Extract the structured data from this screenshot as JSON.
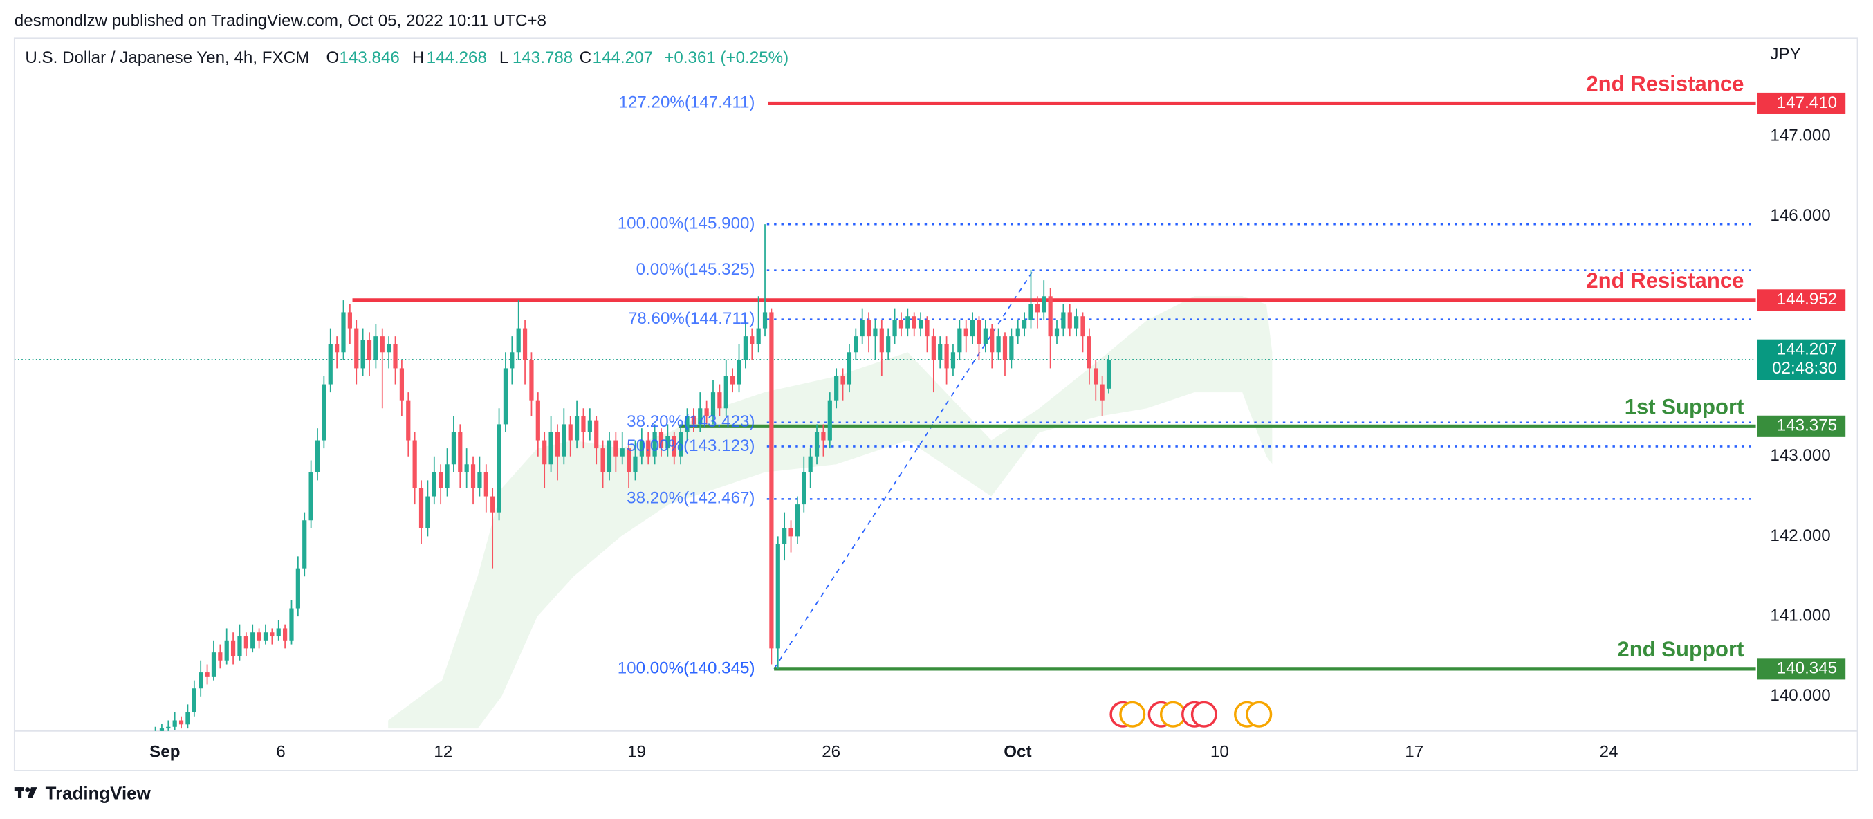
{
  "header": "desmondlzw published on TradingView.com, Oct 05, 2022 10:11 UTC+8",
  "footer": "TradingView",
  "chart_data": {
    "type": "candlestick",
    "title": "U.S. Dollar / Japanese Yen, 4h, FXCM",
    "ohlc_legend": [
      {
        "key": "O",
        "value": "143.846"
      },
      {
        "key": "H",
        "value": "144.268"
      },
      {
        "key": "L",
        "value": "143.788"
      },
      {
        "key": "C",
        "value": "144.207"
      }
    ],
    "change": "+0.361 (+0.25%)",
    "currency": "JPY",
    "colors": {
      "up": "#22ab94",
      "down": "#f7525f"
    },
    "candles": [
      [
        139.5,
        139.62,
        139.45,
        139.55
      ],
      [
        139.55,
        139.66,
        139.5,
        139.6
      ],
      [
        139.6,
        139.7,
        139.55,
        139.62
      ],
      [
        139.62,
        139.8,
        139.58,
        139.7
      ],
      [
        139.7,
        139.75,
        139.6,
        139.65
      ],
      [
        139.65,
        139.9,
        139.6,
        139.8
      ],
      [
        139.8,
        140.2,
        139.75,
        140.1
      ],
      [
        140.1,
        140.45,
        140.0,
        140.3
      ],
      [
        140.3,
        140.4,
        140.15,
        140.25
      ],
      [
        140.25,
        140.7,
        140.2,
        140.55
      ],
      [
        140.55,
        140.65,
        140.35,
        140.45
      ],
      [
        140.45,
        140.85,
        140.4,
        140.7
      ],
      [
        140.7,
        140.8,
        140.4,
        140.5
      ],
      [
        140.5,
        140.9,
        140.45,
        140.75
      ],
      [
        140.75,
        140.8,
        140.5,
        140.6
      ],
      [
        140.6,
        140.9,
        140.55,
        140.8
      ],
      [
        140.8,
        140.85,
        140.6,
        140.7
      ],
      [
        140.7,
        140.9,
        140.65,
        140.8
      ],
      [
        140.8,
        140.85,
        140.65,
        140.75
      ],
      [
        140.75,
        140.95,
        140.7,
        140.85
      ],
      [
        140.85,
        140.9,
        140.6,
        140.7
      ],
      [
        140.7,
        141.2,
        140.65,
        141.1
      ],
      [
        141.1,
        141.75,
        141.0,
        141.6
      ],
      [
        141.6,
        142.3,
        141.5,
        142.2
      ],
      [
        142.2,
        142.95,
        142.1,
        142.8
      ],
      [
        142.8,
        143.35,
        142.7,
        143.2
      ],
      [
        143.2,
        144.0,
        143.1,
        143.9
      ],
      [
        143.9,
        144.6,
        143.8,
        144.4
      ],
      [
        144.4,
        144.5,
        144.1,
        144.3
      ],
      [
        144.3,
        144.95,
        144.2,
        144.8
      ],
      [
        144.8,
        144.9,
        144.4,
        144.6
      ],
      [
        144.6,
        144.7,
        143.9,
        144.1
      ],
      [
        144.1,
        144.6,
        144.0,
        144.45
      ],
      [
        144.45,
        144.55,
        144.0,
        144.2
      ],
      [
        144.2,
        144.65,
        144.1,
        144.5
      ],
      [
        144.5,
        144.6,
        143.6,
        144.3
      ],
      [
        144.3,
        144.5,
        144.1,
        144.4
      ],
      [
        144.4,
        144.5,
        143.9,
        144.1
      ],
      [
        144.1,
        144.2,
        143.5,
        143.7
      ],
      [
        143.7,
        143.8,
        143.0,
        143.2
      ],
      [
        143.2,
        143.3,
        142.4,
        142.6
      ],
      [
        142.6,
        142.7,
        141.9,
        142.1
      ],
      [
        142.1,
        142.7,
        142.0,
        142.5
      ],
      [
        142.5,
        143.0,
        142.4,
        142.8
      ],
      [
        142.8,
        142.9,
        142.4,
        142.6
      ],
      [
        142.6,
        143.1,
        142.5,
        142.9
      ],
      [
        142.9,
        143.5,
        142.8,
        143.3
      ],
      [
        143.3,
        143.4,
        142.6,
        142.8
      ],
      [
        142.8,
        143.1,
        142.6,
        142.9
      ],
      [
        142.9,
        143.0,
        142.4,
        142.6
      ],
      [
        142.6,
        143.0,
        142.5,
        142.8
      ],
      [
        142.8,
        142.9,
        142.3,
        142.5
      ],
      [
        142.5,
        142.6,
        141.6,
        142.3
      ],
      [
        142.3,
        143.6,
        142.2,
        143.4
      ],
      [
        143.4,
        144.3,
        143.3,
        144.1
      ],
      [
        144.1,
        144.5,
        143.9,
        144.3
      ],
      [
        144.3,
        144.95,
        144.2,
        144.6
      ],
      [
        144.6,
        144.7,
        143.9,
        144.2
      ],
      [
        144.2,
        144.3,
        143.5,
        143.7
      ],
      [
        143.7,
        143.8,
        143.0,
        143.2
      ],
      [
        143.2,
        143.3,
        142.6,
        142.9
      ],
      [
        142.9,
        143.5,
        142.8,
        143.3
      ],
      [
        143.3,
        143.4,
        142.7,
        143.0
      ],
      [
        143.0,
        143.6,
        142.9,
        143.4
      ],
      [
        143.4,
        143.5,
        143.0,
        143.2
      ],
      [
        143.2,
        143.7,
        143.1,
        143.5
      ],
      [
        143.5,
        143.6,
        143.1,
        143.3
      ],
      [
        143.3,
        143.6,
        143.2,
        143.45
      ],
      [
        143.45,
        143.5,
        142.9,
        143.1
      ],
      [
        143.1,
        143.2,
        142.6,
        142.8
      ],
      [
        142.8,
        143.3,
        142.7,
        143.2
      ],
      [
        143.2,
        143.3,
        142.8,
        143.0
      ],
      [
        143.0,
        143.3,
        142.9,
        143.1
      ],
      [
        143.1,
        143.2,
        142.6,
        142.8
      ],
      [
        142.8,
        143.2,
        142.7,
        143.0
      ],
      [
        143.0,
        143.35,
        142.9,
        143.2
      ],
      [
        143.2,
        143.3,
        142.9,
        143.0
      ],
      [
        143.0,
        143.4,
        142.9,
        143.3
      ],
      [
        143.3,
        143.35,
        143.0,
        143.1
      ],
      [
        143.1,
        143.4,
        143.0,
        143.25
      ],
      [
        143.25,
        143.3,
        142.9,
        143.0
      ],
      [
        143.0,
        143.4,
        142.9,
        143.3
      ],
      [
        143.3,
        143.6,
        143.2,
        143.5
      ],
      [
        143.5,
        143.6,
        143.3,
        143.4
      ],
      [
        143.4,
        143.8,
        143.3,
        143.6
      ],
      [
        143.6,
        143.7,
        143.4,
        143.5
      ],
      [
        143.5,
        143.95,
        143.4,
        143.8
      ],
      [
        143.8,
        143.9,
        143.5,
        143.6
      ],
      [
        143.6,
        144.2,
        143.5,
        144.0
      ],
      [
        144.0,
        144.1,
        143.8,
        143.9
      ],
      [
        143.9,
        144.4,
        143.8,
        144.2
      ],
      [
        144.2,
        144.7,
        144.1,
        144.5
      ],
      [
        144.5,
        144.6,
        144.2,
        144.4
      ],
      [
        144.4,
        145.0,
        144.3,
        144.6
      ],
      [
        144.6,
        145.9,
        144.5,
        144.8
      ],
      [
        144.8,
        144.85,
        140.4,
        140.6
      ],
      [
        140.6,
        142.0,
        140.345,
        141.9
      ],
      [
        141.9,
        142.3,
        141.7,
        142.1
      ],
      [
        142.1,
        142.2,
        141.8,
        142.0
      ],
      [
        142.0,
        142.5,
        141.9,
        142.4
      ],
      [
        142.4,
        143.0,
        142.3,
        142.8
      ],
      [
        142.8,
        143.1,
        142.6,
        143.0
      ],
      [
        143.0,
        143.4,
        142.9,
        143.3
      ],
      [
        143.3,
        143.4,
        143.0,
        143.2
      ],
      [
        143.2,
        143.8,
        143.1,
        143.7
      ],
      [
        143.7,
        144.1,
        143.6,
        144.0
      ],
      [
        144.0,
        144.1,
        143.7,
        143.9
      ],
      [
        143.9,
        144.4,
        143.8,
        144.3
      ],
      [
        144.3,
        144.6,
        144.2,
        144.5
      ],
      [
        144.5,
        144.85,
        144.4,
        144.7
      ],
      [
        144.7,
        144.8,
        144.3,
        144.5
      ],
      [
        144.5,
        144.7,
        144.2,
        144.6
      ],
      [
        144.6,
        144.7,
        144.0,
        144.3
      ],
      [
        144.3,
        144.6,
        144.2,
        144.5
      ],
      [
        144.5,
        144.85,
        144.4,
        144.7
      ],
      [
        144.7,
        144.8,
        144.5,
        144.6
      ],
      [
        144.6,
        144.85,
        144.5,
        144.75
      ],
      [
        144.75,
        144.8,
        144.5,
        144.6
      ],
      [
        144.6,
        144.8,
        144.5,
        144.7
      ],
      [
        144.7,
        144.75,
        144.3,
        144.5
      ],
      [
        144.5,
        144.6,
        143.8,
        144.2
      ],
      [
        144.2,
        144.5,
        144.1,
        144.4
      ],
      [
        144.4,
        144.5,
        143.9,
        144.1
      ],
      [
        144.1,
        144.4,
        144.0,
        144.3
      ],
      [
        144.3,
        144.7,
        144.2,
        144.6
      ],
      [
        144.6,
        144.7,
        144.3,
        144.5
      ],
      [
        144.5,
        144.8,
        144.4,
        144.7
      ],
      [
        144.7,
        144.75,
        144.2,
        144.4
      ],
      [
        144.4,
        144.7,
        144.3,
        144.6
      ],
      [
        144.6,
        144.65,
        144.1,
        144.3
      ],
      [
        144.3,
        144.6,
        144.2,
        144.5
      ],
      [
        144.5,
        144.55,
        144.0,
        144.2
      ],
      [
        144.2,
        144.6,
        144.1,
        144.5
      ],
      [
        144.5,
        144.7,
        144.4,
        144.6
      ],
      [
        144.6,
        144.8,
        144.5,
        144.7
      ],
      [
        144.7,
        145.325,
        144.6,
        144.9
      ],
      [
        144.9,
        145.0,
        144.6,
        144.8
      ],
      [
        144.8,
        145.2,
        144.7,
        145.0
      ],
      [
        145.0,
        145.1,
        144.1,
        144.5
      ],
      [
        144.5,
        144.7,
        144.4,
        144.6
      ],
      [
        144.6,
        144.9,
        144.5,
        144.8
      ],
      [
        144.8,
        144.9,
        144.5,
        144.6
      ],
      [
        144.6,
        144.85,
        144.5,
        144.75
      ],
      [
        144.75,
        144.8,
        144.3,
        144.5
      ],
      [
        144.5,
        144.6,
        143.9,
        144.1
      ],
      [
        144.1,
        144.2,
        143.7,
        143.9
      ],
      [
        143.9,
        144.0,
        143.5,
        143.7
      ],
      [
        143.846,
        144.268,
        143.788,
        144.207
      ]
    ],
    "xlim": [
      -21.73,
      246.78
    ],
    "xticks": [
      {
        "value": 1.47,
        "label": "Sep"
      },
      {
        "value": 19.34,
        "label": "6"
      },
      {
        "value": 44.38,
        "label": "12"
      },
      {
        "value": 74.22,
        "label": "19"
      },
      {
        "value": 104.2,
        "label": "26"
      },
      {
        "value": 132.96,
        "label": "Oct"
      },
      {
        "value": 164.1,
        "label": "10"
      },
      {
        "value": 194.1,
        "label": "17"
      },
      {
        "value": 224.1,
        "label": "24"
      }
    ],
    "ylim": [
      139.567,
      148.224
    ],
    "yticks": [
      {
        "value": 140,
        "label": "140.000"
      },
      {
        "value": 141,
        "label": "141.000"
      },
      {
        "value": 142,
        "label": "142.000"
      },
      {
        "value": 143,
        "label": "143.000"
      },
      {
        "value": 146,
        "label": "146.000"
      },
      {
        "value": 147,
        "label": "147.000"
      }
    ],
    "last_price": {
      "value": 144.207,
      "label": "144.207",
      "countdown": "02:48:30",
      "color": "#089981"
    },
    "levels": [
      {
        "name": "2nd Resistance",
        "value": 147.41,
        "label": "147.410",
        "color": "#f23645"
      },
      {
        "name": "2nd Resistance",
        "value": 144.952,
        "label": "144.952",
        "color": "#f23645"
      },
      {
        "name": "1st Support",
        "value": 143.375,
        "label": "143.375",
        "color": "#388e3c"
      },
      {
        "name": "2nd Support",
        "value": 140.345,
        "label": "140.345",
        "color": "#388e3c"
      }
    ],
    "fib_color": "#2962ff",
    "fib_levels": [
      {
        "label": "127.20%(147.411)",
        "value": 147.411,
        "dotted": false
      },
      {
        "label": "100.00%(145.900)",
        "value": 145.9,
        "dotted": true
      },
      {
        "label": "0.00%(145.325)",
        "value": 145.325,
        "dotted": true
      },
      {
        "label": "78.60%(144.711)",
        "value": 144.711,
        "dotted": true
      },
      {
        "label": "38.20%(143.423)",
        "value": 143.423,
        "dotted": true
      },
      {
        "label": "50.00%(143.123)",
        "value": 143.123,
        "dotted": true
      },
      {
        "label": "38.20%(142.467)",
        "value": 142.467,
        "dotted": true
      },
      {
        "label": "100.00%(140.345)",
        "value": 140.345,
        "dotted": false
      },
      {
        "label": "0.00%(140.345)",
        "value": 140.345,
        "dotted": false
      }
    ],
    "cloud": {
      "color": "#4caf50",
      "x": [
        35.9,
        44.2,
        49.7,
        53.4,
        58.9,
        64.5,
        71.8,
        79.2,
        86.6,
        93.9,
        105,
        116,
        128.9,
        136.3,
        145.5,
        152.9,
        160.2,
        167.6,
        171.3,
        172.2
      ],
      "upper": [
        139.7,
        140.2,
        141.5,
        142.6,
        143.1,
        143.2,
        143.1,
        143.3,
        143.6,
        143.8,
        144.0,
        144.3,
        143.2,
        143.6,
        144.2,
        144.7,
        145.0,
        145.0,
        144.9,
        144.3
      ],
      "lower": [
        139.6,
        139.6,
        139.6,
        140.0,
        141.0,
        141.5,
        142.0,
        142.4,
        142.6,
        142.8,
        142.9,
        143.2,
        142.5,
        143.3,
        143.5,
        143.6,
        143.8,
        143.8,
        143.0,
        142.9
      ]
    }
  }
}
